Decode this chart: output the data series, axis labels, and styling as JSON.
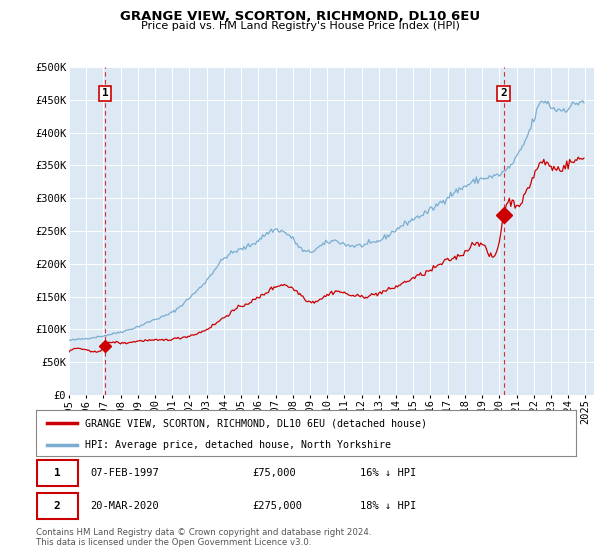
{
  "title": "GRANGE VIEW, SCORTON, RICHMOND, DL10 6EU",
  "subtitle": "Price paid vs. HM Land Registry's House Price Index (HPI)",
  "ylabel_ticks": [
    "£0",
    "£50K",
    "£100K",
    "£150K",
    "£200K",
    "£250K",
    "£300K",
    "£350K",
    "£400K",
    "£450K",
    "£500K"
  ],
  "ytick_values": [
    0,
    50000,
    100000,
    150000,
    200000,
    250000,
    300000,
    350000,
    400000,
    450000,
    500000
  ],
  "ylim": [
    0,
    500000
  ],
  "xlim_start": 1995.0,
  "xlim_end": 2025.5,
  "xtick_years": [
    1995,
    1996,
    1997,
    1998,
    1999,
    2000,
    2001,
    2002,
    2003,
    2004,
    2005,
    2006,
    2007,
    2008,
    2009,
    2010,
    2011,
    2012,
    2013,
    2014,
    2015,
    2016,
    2017,
    2018,
    2019,
    2020,
    2021,
    2022,
    2023,
    2024,
    2025
  ],
  "bg_color": "#dce9f5",
  "line_color_red": "#cc0000",
  "line_color_blue": "#7aadcf",
  "marker_color": "#cc0000",
  "dashed_line_color": "#cc0000",
  "legend_label_red": "GRANGE VIEW, SCORTON, RICHMOND, DL10 6EU (detached house)",
  "legend_label_blue": "HPI: Average price, detached house, North Yorkshire",
  "point1_label": "1",
  "point1_date": "07-FEB-1997",
  "point1_price": "£75,000",
  "point1_hpi": "16% ↓ HPI",
  "point1_x": 1997.1,
  "point1_y": 75000,
  "point2_label": "2",
  "point2_date": "20-MAR-2020",
  "point2_price": "£275,000",
  "point2_hpi": "18% ↓ HPI",
  "point2_x": 2020.25,
  "point2_y": 275000,
  "footer": "Contains HM Land Registry data © Crown copyright and database right 2024.\nThis data is licensed under the Open Government Licence v3.0."
}
